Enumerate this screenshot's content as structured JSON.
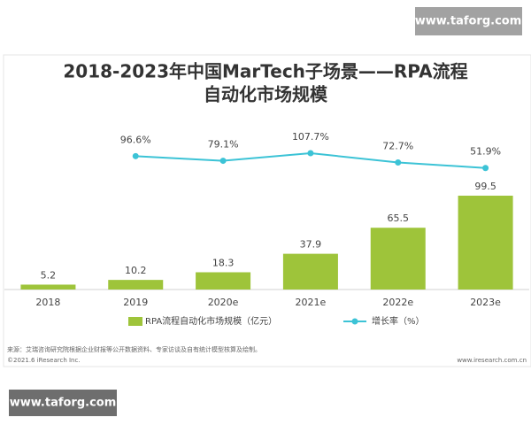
{
  "watermarks": [
    "www.taforg.com",
    "www.taforg.com"
  ],
  "chart_data": {
    "type": "bar",
    "title": [
      "2018-2023年中国MarTech子场景——RPA流程",
      "自动化市场规模"
    ],
    "categories": [
      "2018",
      "2019",
      "2020e",
      "2021e",
      "2022e",
      "2023e"
    ],
    "series": [
      {
        "name": "RPA流程自动化市场规模（亿元）",
        "type": "bar",
        "color": "#9ec43a",
        "values": [
          5.2,
          10.2,
          18.3,
          37.9,
          65.5,
          99.5
        ]
      },
      {
        "name": "增长率（%）",
        "type": "line",
        "color": "#3cc3d6",
        "values": [
          null,
          96.6,
          79.1,
          107.7,
          72.7,
          51.9
        ],
        "value_labels": [
          null,
          "96.6%",
          "79.1%",
          "107.7%",
          "72.7%",
          "51.9%"
        ]
      }
    ],
    "source": "来源：艾瑞咨询研究院根据企业财报等公开数据资料、专家访谈及自有统计模型核算及绘制。",
    "copyright": "©2021.6 iResearch Inc.",
    "website": "www.iresearch.com.cn"
  }
}
